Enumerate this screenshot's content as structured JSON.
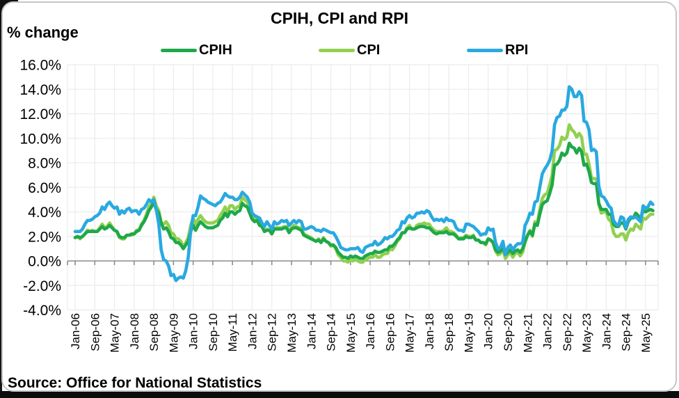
{
  "chart_data": {
    "type": "line",
    "title": "CPIH, CPI and RPI",
    "y_axis_note": "% change",
    "source": "Source: Office for National Statistics",
    "x_start": "Jan-06",
    "x_end": "Aug-25",
    "x_tick_step_months": 8,
    "x_ticks": [
      "Jan-06",
      "Sep-06",
      "May-07",
      "Jan-08",
      "Sep-08",
      "May-09",
      "Jan-10",
      "Sep-10",
      "May-11",
      "Jan-12",
      "Sep-12",
      "May-13",
      "Jan-14",
      "Sep-14",
      "May-15",
      "Jan-16",
      "Sep-16",
      "May-17",
      "Jan-18",
      "Sep-18",
      "May-19",
      "Jan-20",
      "Sep-20",
      "May-21",
      "Jan-22",
      "Sep-22",
      "May-23",
      "Jan-24",
      "Sep-24",
      "May-25"
    ],
    "y_tick_labels": [
      "16.0%",
      "14.0%",
      "12.0%",
      "10.0%",
      "8.0%",
      "6.0%",
      "4.0%",
      "2.0%",
      "0.0%",
      "-2.0%",
      "-4.0%"
    ],
    "y_tick_values": [
      16,
      14,
      12,
      10,
      8,
      6,
      4,
      2,
      0,
      -2,
      -4
    ],
    "ylim": [
      -4,
      16
    ],
    "grid": true,
    "legend_position": "top",
    "draw_order": [
      1,
      0,
      2
    ],
    "colors": {
      "grid": "#ececec",
      "axis": "#8c8c8c"
    },
    "series": [
      {
        "name": "CPIH",
        "color": "#1fa84a",
        "values": [
          1.9,
          2.0,
          1.9,
          2.0,
          2.2,
          2.4,
          2.4,
          2.4,
          2.4,
          2.4,
          2.6,
          2.8,
          2.6,
          2.7,
          2.9,
          2.7,
          2.5,
          2.4,
          2.0,
          1.9,
          1.9,
          2.1,
          2.1,
          2.2,
          2.2,
          2.4,
          2.5,
          2.9,
          3.2,
          3.6,
          4.1,
          4.4,
          4.8,
          4.2,
          3.9,
          3.1,
          2.6,
          2.7,
          2.4,
          1.9,
          1.8,
          1.5,
          1.5,
          1.3,
          1.0,
          1.3,
          1.6,
          2.4,
          2.9,
          2.5,
          2.9,
          3.2,
          3.0,
          2.8,
          2.7,
          2.7,
          2.7,
          2.8,
          2.9,
          3.3,
          3.5,
          3.9,
          3.6,
          4.0,
          4.0,
          3.8,
          4.0,
          4.1,
          4.7,
          4.5,
          4.4,
          3.9,
          3.4,
          3.2,
          3.3,
          2.9,
          2.8,
          2.4,
          2.5,
          2.5,
          2.2,
          2.6,
          2.6,
          2.6,
          2.6,
          2.7,
          2.7,
          2.3,
          2.6,
          2.7,
          2.7,
          2.6,
          2.5,
          2.1,
          2.0,
          1.9,
          1.8,
          1.7,
          1.6,
          1.7,
          1.5,
          1.8,
          1.6,
          1.5,
          1.3,
          1.3,
          1.1,
          0.7,
          0.5,
          0.3,
          0.3,
          0.2,
          0.4,
          0.3,
          0.4,
          0.3,
          0.2,
          0.2,
          0.4,
          0.5,
          0.6,
          0.6,
          0.8,
          0.7,
          0.7,
          0.8,
          0.9,
          0.9,
          1.2,
          1.2,
          1.4,
          1.7,
          1.9,
          2.3,
          2.3,
          2.6,
          2.7,
          2.6,
          2.6,
          2.7,
          2.8,
          2.8,
          2.8,
          2.7,
          2.7,
          2.5,
          2.3,
          2.2,
          2.3,
          2.3,
          2.3,
          2.4,
          2.2,
          2.2,
          2.2,
          2.0,
          1.8,
          1.8,
          1.8,
          2.0,
          1.9,
          1.9,
          2.0,
          1.7,
          1.7,
          1.5,
          1.5,
          1.4,
          1.8,
          1.7,
          1.5,
          0.9,
          0.7,
          0.8,
          1.1,
          0.5,
          0.7,
          0.9,
          0.6,
          0.8,
          0.9,
          0.7,
          1.0,
          1.6,
          2.1,
          2.4,
          2.1,
          3.0,
          2.9,
          3.8,
          4.6,
          4.8,
          4.9,
          5.5,
          6.2,
          7.8,
          7.9,
          8.2,
          8.8,
          8.6,
          8.8,
          9.6,
          9.3,
          9.2,
          8.8,
          9.2,
          8.9,
          7.8,
          7.9,
          7.3,
          6.4,
          6.3,
          6.3,
          4.7,
          4.2,
          4.2,
          4.2,
          3.8,
          3.8,
          3.0,
          2.8,
          2.8,
          3.1,
          3.1,
          2.6,
          3.2,
          3.5,
          3.5,
          3.9,
          3.7,
          3.4,
          4.1,
          4.0,
          4.1,
          4.2,
          4.1
        ]
      },
      {
        "name": "CPI",
        "color": "#92d050",
        "values": [
          1.9,
          2.0,
          1.8,
          2.0,
          2.2,
          2.5,
          2.4,
          2.5,
          2.4,
          2.4,
          2.7,
          3.0,
          2.7,
          2.8,
          3.1,
          2.8,
          2.5,
          2.4,
          1.9,
          1.8,
          1.8,
          2.1,
          2.1,
          2.1,
          2.2,
          2.5,
          2.5,
          3.0,
          3.3,
          3.8,
          4.4,
          4.7,
          5.2,
          4.5,
          4.1,
          3.1,
          3.0,
          3.2,
          2.9,
          2.3,
          2.2,
          1.8,
          1.8,
          1.6,
          1.1,
          1.5,
          1.9,
          2.9,
          3.5,
          3.0,
          3.4,
          3.7,
          3.4,
          3.2,
          3.1,
          3.1,
          3.1,
          3.2,
          3.3,
          3.7,
          4.0,
          4.4,
          4.0,
          4.5,
          4.5,
          4.2,
          4.4,
          4.5,
          5.2,
          5.0,
          4.8,
          4.2,
          3.6,
          3.4,
          3.5,
          3.0,
          2.8,
          2.4,
          2.6,
          2.5,
          2.2,
          2.7,
          2.7,
          2.7,
          2.7,
          2.8,
          2.8,
          2.4,
          2.7,
          2.9,
          2.8,
          2.7,
          2.7,
          2.2,
          2.1,
          2.0,
          1.9,
          1.7,
          1.6,
          1.8,
          1.5,
          1.9,
          1.6,
          1.5,
          1.2,
          1.3,
          1.0,
          0.5,
          0.3,
          0.0,
          0.0,
          -0.1,
          0.1,
          0.0,
          0.1,
          0.0,
          -0.1,
          -0.1,
          0.1,
          0.2,
          0.3,
          0.3,
          0.5,
          0.3,
          0.3,
          0.5,
          0.6,
          0.6,
          1.0,
          0.9,
          1.2,
          1.6,
          1.8,
          2.3,
          2.3,
          2.7,
          2.9,
          2.6,
          2.6,
          2.9,
          3.0,
          3.0,
          3.1,
          3.0,
          3.0,
          2.7,
          2.5,
          2.4,
          2.4,
          2.4,
          2.5,
          2.7,
          2.4,
          2.4,
          2.3,
          2.1,
          1.8,
          1.9,
          1.9,
          2.1,
          2.0,
          2.0,
          2.1,
          1.7,
          1.7,
          1.5,
          1.5,
          1.3,
          1.8,
          1.7,
          1.5,
          0.8,
          0.5,
          0.6,
          1.0,
          0.2,
          0.5,
          0.7,
          0.3,
          0.6,
          0.7,
          0.4,
          0.7,
          1.5,
          2.1,
          2.5,
          2.0,
          3.2,
          3.1,
          4.2,
          5.1,
          5.4,
          5.5,
          6.2,
          7.0,
          9.0,
          9.1,
          9.4,
          10.1,
          9.9,
          10.1,
          11.1,
          10.7,
          10.5,
          10.1,
          10.4,
          10.1,
          8.7,
          8.7,
          7.9,
          6.8,
          6.7,
          6.7,
          4.6,
          3.9,
          4.0,
          4.0,
          3.4,
          3.2,
          2.3,
          2.0,
          2.0,
          2.2,
          2.2,
          1.7,
          2.3,
          2.6,
          2.5,
          3.0,
          2.8,
          2.6,
          3.5,
          3.4,
          3.6,
          3.8,
          3.8
        ]
      },
      {
        "name": "RPI",
        "color": "#29a9e1",
        "values": [
          2.4,
          2.4,
          2.4,
          2.6,
          3.0,
          3.3,
          3.3,
          3.4,
          3.6,
          3.7,
          3.9,
          4.4,
          4.2,
          4.6,
          4.8,
          4.5,
          4.3,
          4.4,
          3.8,
          4.1,
          3.9,
          4.2,
          4.3,
          4.0,
          4.1,
          4.1,
          3.8,
          4.2,
          4.3,
          4.6,
          5.0,
          4.8,
          5.0,
          4.2,
          3.0,
          0.9,
          0.1,
          0.0,
          -0.4,
          -1.2,
          -1.1,
          -1.6,
          -1.4,
          -1.3,
          -1.4,
          -0.8,
          0.3,
          2.4,
          3.7,
          3.7,
          4.4,
          5.3,
          5.1,
          5.0,
          4.8,
          4.7,
          4.6,
          4.5,
          4.7,
          4.8,
          5.1,
          5.5,
          5.3,
          5.2,
          5.2,
          5.0,
          5.0,
          5.2,
          5.6,
          5.4,
          5.2,
          4.8,
          3.9,
          3.7,
          3.6,
          3.5,
          3.1,
          2.8,
          3.2,
          2.9,
          2.6,
          3.2,
          3.0,
          3.1,
          3.3,
          3.2,
          3.3,
          2.9,
          3.1,
          3.3,
          3.1,
          3.3,
          3.2,
          2.6,
          2.6,
          2.7,
          2.8,
          2.7,
          2.5,
          2.5,
          2.4,
          2.6,
          2.5,
          2.4,
          2.3,
          2.3,
          2.0,
          1.6,
          1.1,
          1.0,
          0.9,
          0.9,
          1.0,
          1.0,
          1.0,
          1.1,
          0.8,
          0.7,
          1.1,
          1.2,
          1.3,
          1.3,
          1.6,
          1.3,
          1.4,
          1.6,
          1.9,
          1.8,
          2.0,
          2.0,
          2.2,
          2.5,
          2.6,
          3.2,
          3.1,
          3.5,
          3.7,
          3.5,
          3.6,
          3.9,
          3.9,
          4.0,
          3.9,
          4.1,
          4.0,
          3.6,
          3.3,
          3.4,
          3.3,
          3.4,
          3.2,
          3.5,
          3.3,
          3.3,
          3.2,
          2.7,
          2.5,
          2.5,
          2.4,
          3.0,
          3.0,
          2.9,
          2.8,
          2.6,
          2.4,
          2.1,
          2.2,
          2.2,
          2.7,
          2.5,
          2.6,
          1.5,
          1.0,
          1.1,
          1.6,
          0.5,
          1.1,
          1.3,
          0.9,
          1.2,
          1.4,
          1.4,
          1.5,
          2.9,
          3.3,
          3.9,
          3.8,
          4.8,
          4.9,
          6.0,
          7.1,
          7.5,
          7.8,
          8.2,
          9.0,
          11.1,
          11.7,
          11.8,
          12.3,
          12.3,
          12.6,
          14.2,
          14.0,
          13.4,
          13.4,
          13.8,
          13.5,
          11.4,
          11.3,
          10.7,
          9.0,
          9.1,
          8.9,
          6.1,
          5.3,
          5.2,
          4.9,
          4.5,
          4.3,
          3.3,
          3.0,
          2.9,
          3.6,
          3.5,
          2.7,
          3.4,
          3.6,
          3.5,
          3.6,
          3.4,
          3.2,
          4.5,
          4.3,
          4.4,
          4.8,
          4.6
        ]
      }
    ]
  }
}
